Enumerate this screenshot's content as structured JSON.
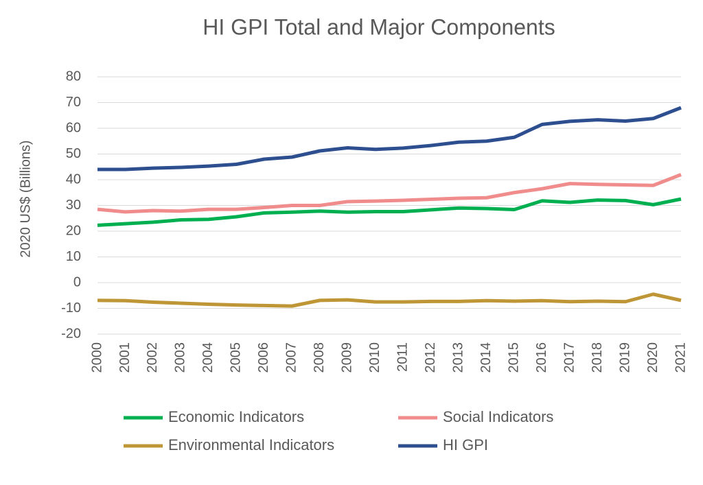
{
  "chart_data": {
    "type": "line",
    "title": "HI GPI Total and Major Components",
    "y_label": "2020 US$ (Billions)",
    "categories": [
      "2000",
      "2001",
      "2002",
      "2003",
      "2004",
      "2005",
      "2006",
      "2007",
      "2008",
      "2009",
      "2010",
      "2011",
      "2012",
      "2013",
      "2014",
      "2015",
      "2016",
      "2017",
      "2018",
      "2019",
      "2020",
      "2021"
    ],
    "series": [
      {
        "name": "Economic Indicators",
        "color": "#00b050",
        "values": [
          22.3,
          22.9,
          23.5,
          24.4,
          24.6,
          25.6,
          27.1,
          27.4,
          27.8,
          27.4,
          27.6,
          27.6,
          28.3,
          29,
          28.8,
          28.4,
          31.8,
          31.2,
          32.1,
          31.9,
          30.3,
          32.5
        ]
      },
      {
        "name": "Social Indicators",
        "color": "#f08c8c",
        "values": [
          28.5,
          27.5,
          28,
          27.8,
          28.5,
          28.5,
          29.2,
          30,
          30,
          31.5,
          31.7,
          32,
          32.4,
          32.8,
          33,
          35,
          36.5,
          38.5,
          38.2,
          38,
          37.8,
          42
        ]
      },
      {
        "name": "Environmental Indicators",
        "color": "#bf9636",
        "values": [
          -6.9,
          -7,
          -7.6,
          -8,
          -8.4,
          -8.7,
          -8.9,
          -9.1,
          -6.9,
          -6.7,
          -7.5,
          -7.5,
          -7.3,
          -7.3,
          -7,
          -7.2,
          -7,
          -7.4,
          -7.2,
          -7.4,
          -4.5,
          -6.9
        ]
      },
      {
        "name": "HI GPI",
        "color": "#2e4f8f",
        "values": [
          44,
          44,
          44.5,
          44.8,
          45.3,
          46,
          48,
          48.8,
          51.2,
          52.4,
          51.8,
          52.3,
          53.3,
          54.6,
          55,
          56.5,
          61.5,
          62.7,
          63.3,
          62.8,
          63.8,
          68
        ]
      }
    ],
    "ylim": [
      -20,
      80
    ],
    "yticks": [
      -20,
      -10,
      0,
      10,
      20,
      30,
      40,
      50,
      60,
      70,
      80
    ],
    "grid": true
  }
}
